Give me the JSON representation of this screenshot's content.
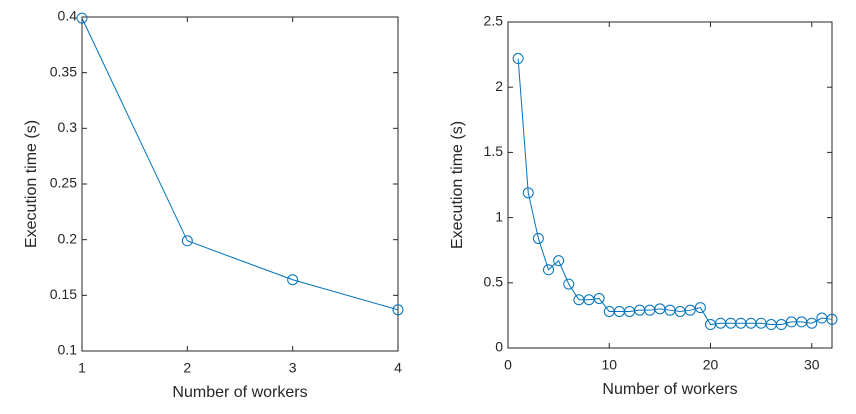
{
  "chart_data": [
    {
      "type": "line",
      "x": [
        1,
        2,
        3,
        4
      ],
      "series": [
        {
          "color": "#0072bd",
          "values": [
            0.399,
            0.199,
            0.164,
            0.137
          ]
        }
      ],
      "xlim": [
        1,
        4
      ],
      "xticks": [
        1,
        2,
        3,
        4
      ],
      "ylim": [
        0.1,
        0.4
      ],
      "yticks": [
        0.1,
        0.15,
        0.2,
        0.25,
        0.3,
        0.35,
        0.4
      ],
      "xlabel": "Number of workers",
      "ylabel": "Execution time (s)",
      "marker": "circle"
    },
    {
      "type": "line",
      "x": [
        1,
        2,
        3,
        4,
        5,
        6,
        7,
        8,
        9,
        10,
        11,
        12,
        13,
        14,
        15,
        16,
        17,
        18,
        19,
        20,
        21,
        22,
        23,
        24,
        25,
        26,
        27,
        28,
        29,
        30,
        31,
        32
      ],
      "series": [
        {
          "color": "#0072bd",
          "values": [
            2.22,
            1.19,
            0.84,
            0.6,
            0.67,
            0.49,
            0.37,
            0.37,
            0.38,
            0.28,
            0.28,
            0.28,
            0.29,
            0.29,
            0.3,
            0.29,
            0.28,
            0.29,
            0.31,
            0.18,
            0.19,
            0.19,
            0.19,
            0.19,
            0.19,
            0.18,
            0.18,
            0.2,
            0.2,
            0.19,
            0.23,
            0.22
          ]
        }
      ],
      "xlim": [
        0,
        32
      ],
      "xticks": [
        0,
        10,
        20,
        30
      ],
      "ylim": [
        0,
        2.5
      ],
      "yticks": [
        0,
        0.5,
        1,
        1.5,
        2,
        2.5
      ],
      "xlabel": "Number of workers",
      "ylabel": "Execution time (s)",
      "marker": "circle"
    }
  ]
}
